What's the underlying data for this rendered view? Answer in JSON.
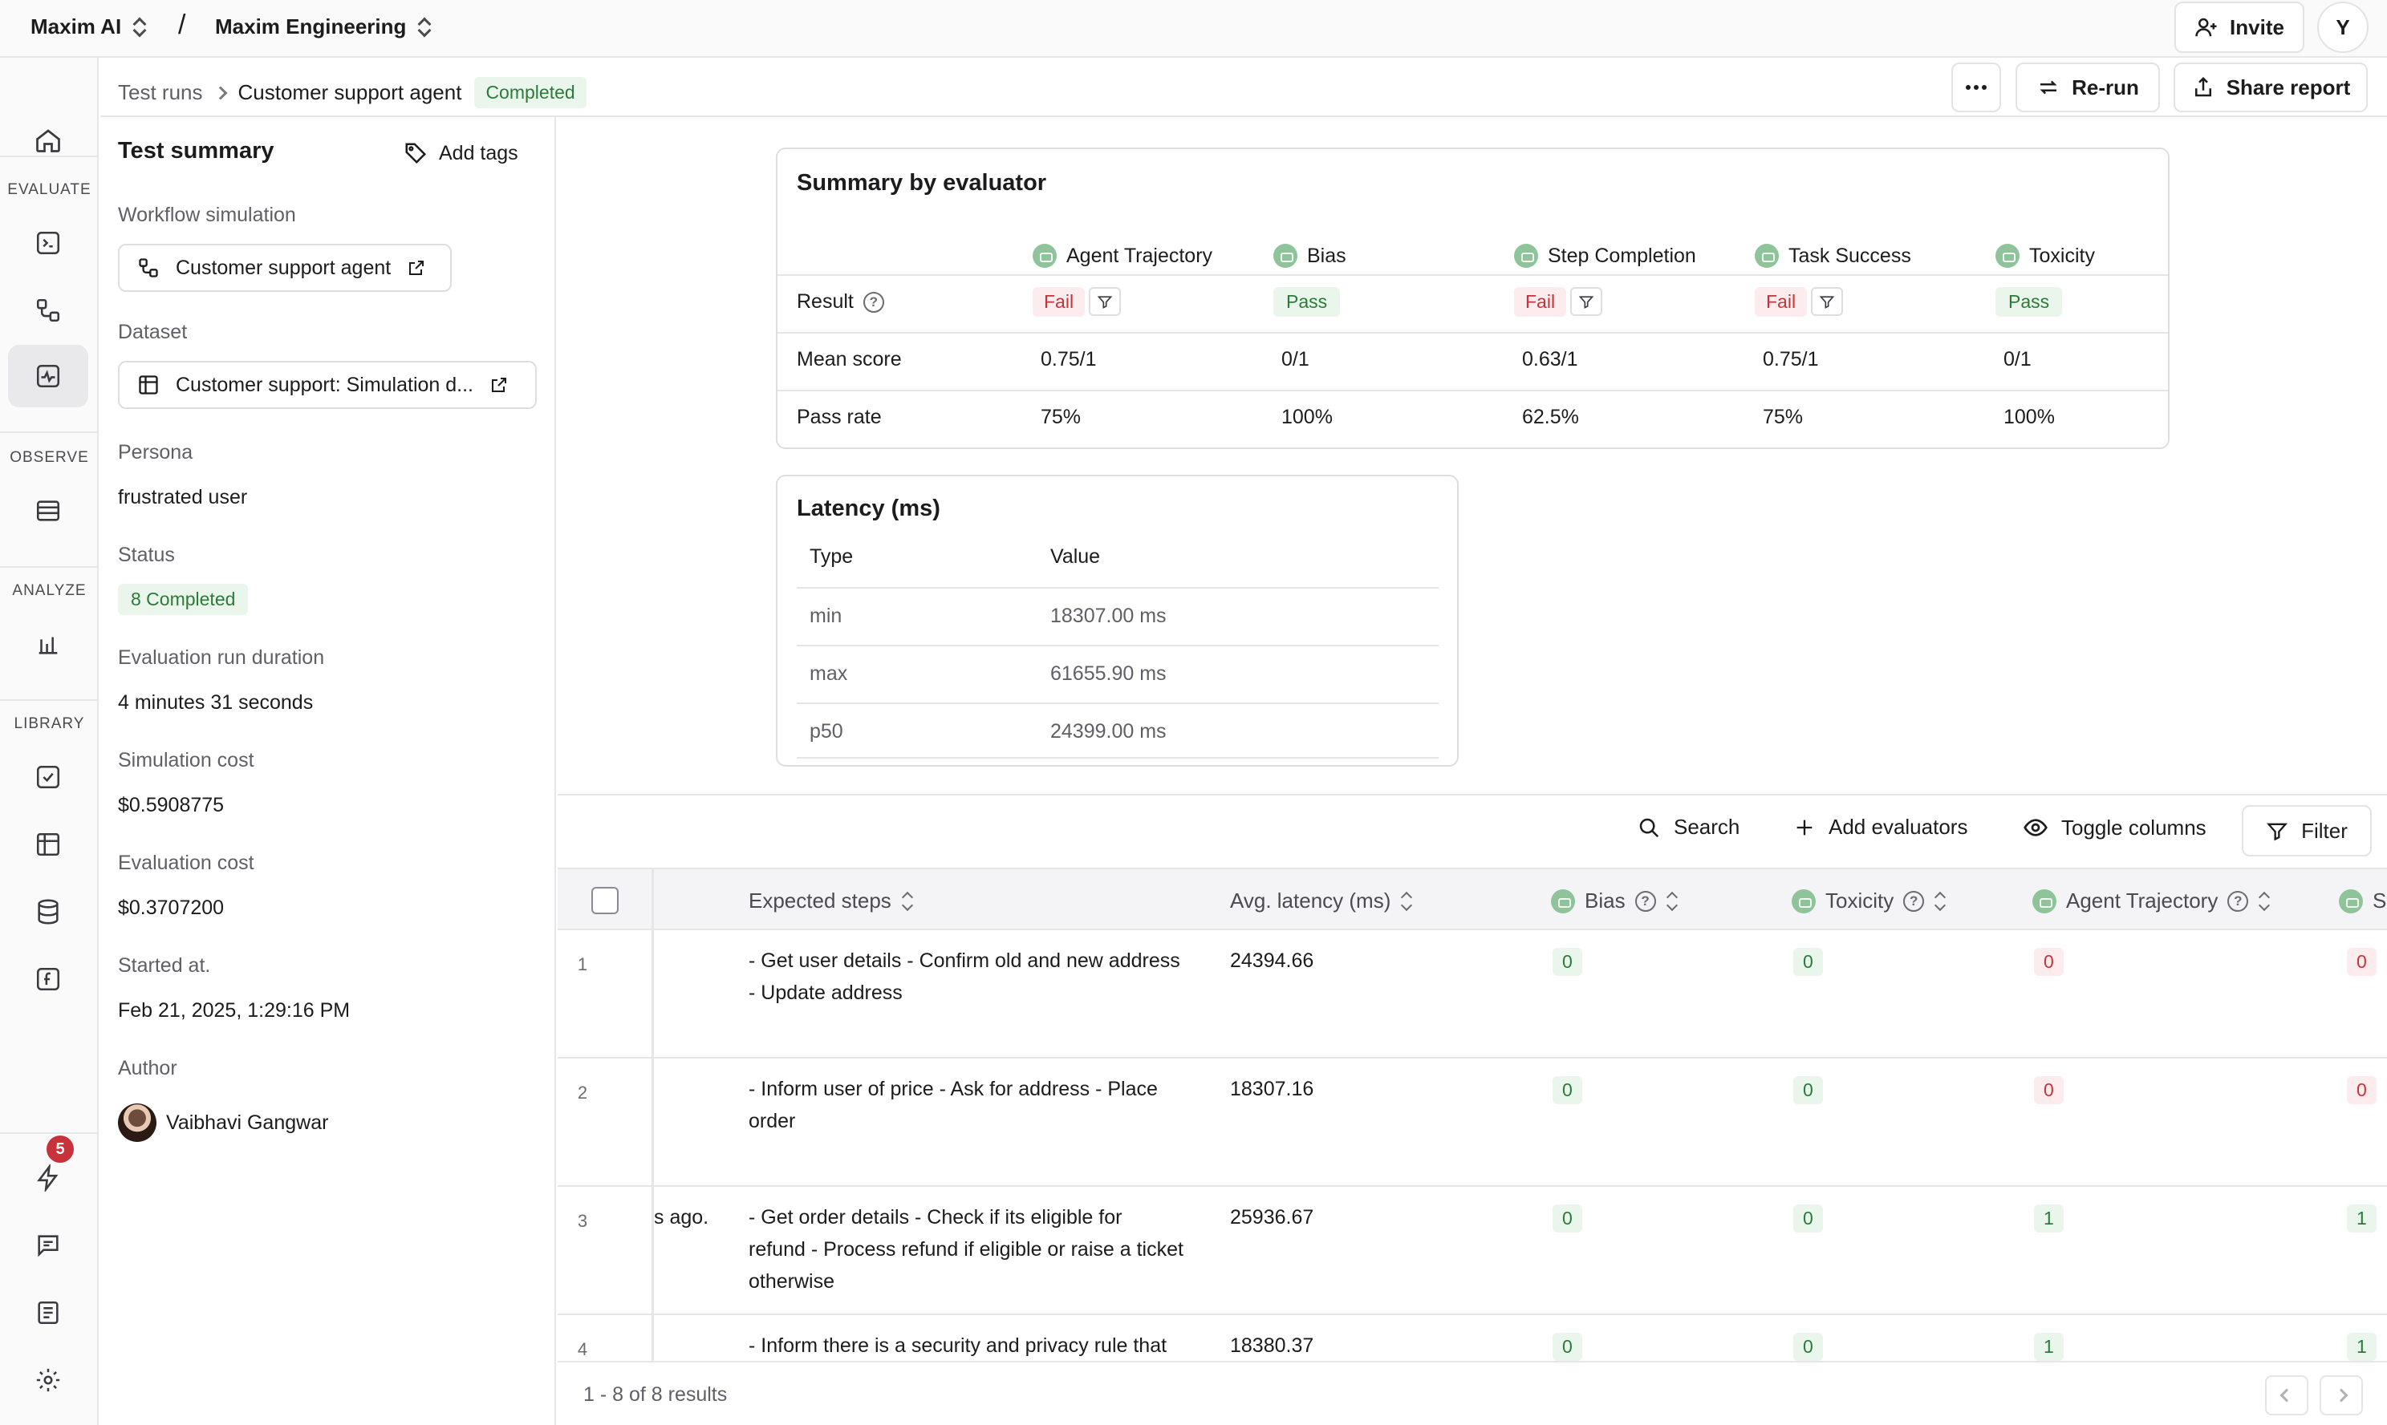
{
  "topbar": {
    "org": "Maxim AI",
    "separator": "/",
    "workspace": "Maxim Engineering",
    "invite_label": "Invite",
    "user_initial": "Y"
  },
  "rail": {
    "sections": [
      "EVALUATE",
      "OBSERVE",
      "ANALYZE",
      "LIBRARY"
    ],
    "notification_count": "5"
  },
  "header": {
    "breadcrumb_root": "Test runs",
    "breadcrumb_current": "Customer support agent",
    "status": "Completed",
    "rerun_label": "Re-run",
    "share_label": "Share report"
  },
  "summary": {
    "title": "Test summary",
    "add_tags": "Add tags",
    "workflow_label": "Workflow simulation",
    "workflow_value": "Customer support agent",
    "dataset_label": "Dataset",
    "dataset_value": "Customer support: Simulation d...",
    "persona_label": "Persona",
    "persona_value": "frustrated user",
    "status_label": "Status",
    "status_value": "8 Completed",
    "duration_label": "Evaluation run duration",
    "duration_value": "4 minutes 31 seconds",
    "sim_cost_label": "Simulation cost",
    "sim_cost_value": "$0.5908775",
    "eval_cost_label": "Evaluation cost",
    "eval_cost_value": "$0.3707200",
    "started_label": "Started at.",
    "started_value": "Feb 21, 2025, 1:29:16 PM",
    "author_label": "Author",
    "author_value": "Vaibhavi Gangwar"
  },
  "evaluator_summary": {
    "title": "Summary by evaluator",
    "row_labels": [
      "Result",
      "Mean score",
      "Pass rate"
    ],
    "evaluators": [
      {
        "name": "Agent Trajectory",
        "result": "Fail",
        "mean": "0.75/1",
        "pass_rate": "75%"
      },
      {
        "name": "Bias",
        "result": "Pass",
        "mean": "0/1",
        "pass_rate": "100%"
      },
      {
        "name": "Step Completion",
        "result": "Fail",
        "mean": "0.63/1",
        "pass_rate": "62.5%"
      },
      {
        "name": "Task Success",
        "result": "Fail",
        "mean": "0.75/1",
        "pass_rate": "75%"
      },
      {
        "name": "Toxicity",
        "result": "Pass",
        "mean": "0/1",
        "pass_rate": "100%"
      }
    ]
  },
  "latency": {
    "title": "Latency (ms)",
    "col_type": "Type",
    "col_value": "Value",
    "rows": [
      {
        "type": "min",
        "value": "18307.00 ms"
      },
      {
        "type": "max",
        "value": "61655.90 ms"
      },
      {
        "type": "p50",
        "value": "24399.00 ms"
      }
    ]
  },
  "table_toolbar": {
    "search": "Search",
    "add_evaluators": "Add evaluators",
    "toggle_columns": "Toggle columns",
    "filter": "Filter"
  },
  "table": {
    "columns": [
      "Expected steps",
      "Avg. latency (ms)",
      "Bias",
      "Toxicity",
      "Agent Trajectory",
      "S"
    ],
    "rows": [
      {
        "num": "1",
        "prev": "",
        "steps": [
          "- Get user details - Confirm old and new address",
          "- Update address"
        ],
        "latency": "24394.66",
        "bias": "0",
        "toxicity": "0",
        "trajectory": "0",
        "step": "0"
      },
      {
        "num": "2",
        "prev": "",
        "steps": [
          "- Inform user of price - Ask for address - Place",
          "order"
        ],
        "latency": "18307.16",
        "bias": "0",
        "toxicity": "0",
        "trajectory": "0",
        "step": "0"
      },
      {
        "num": "3",
        "prev": "s ago.",
        "steps": [
          "- Get order details - Check if its eligible for",
          "refund - Process refund if eligible or raise a ticket",
          "otherwise"
        ],
        "latency": "25936.67",
        "bias": "0",
        "toxicity": "0",
        "trajectory": "1",
        "step": "1"
      },
      {
        "num": "4",
        "prev": "",
        "steps": [
          "- Inform there is a security and privacy rule that"
        ],
        "latency": "18380.37",
        "bias": "0",
        "toxicity": "0",
        "trajectory": "1",
        "step": "1"
      }
    ],
    "results_text": "1 - 8 of 8 results"
  }
}
